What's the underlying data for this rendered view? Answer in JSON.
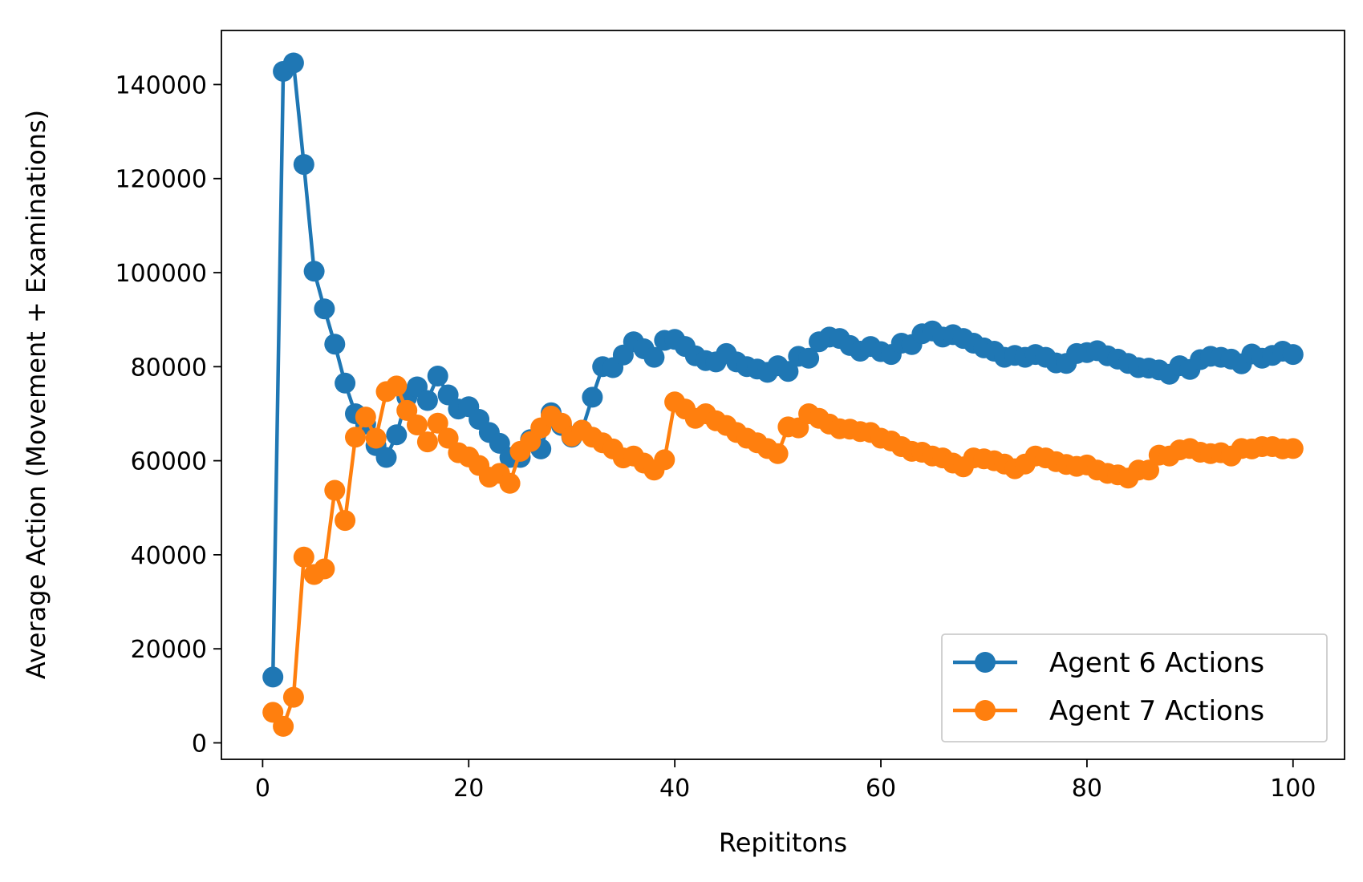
{
  "chart_data": {
    "type": "line",
    "title": "",
    "xlabel": "Repititons",
    "ylabel": "Average Action (Movement + Examinations)",
    "xlim": [
      -4,
      105
    ],
    "ylim": [
      -3500,
      151500
    ],
    "xticks": [
      0,
      20,
      40,
      60,
      80,
      100
    ],
    "yticks": [
      0,
      20000,
      40000,
      60000,
      80000,
      100000,
      120000,
      140000
    ],
    "grid": false,
    "legend_position": "lower-right",
    "x": [
      1,
      2,
      3,
      4,
      5,
      6,
      7,
      8,
      9,
      10,
      11,
      12,
      13,
      14,
      15,
      16,
      17,
      18,
      19,
      20,
      21,
      22,
      23,
      24,
      25,
      26,
      27,
      28,
      29,
      30,
      31,
      32,
      33,
      34,
      35,
      36,
      37,
      38,
      39,
      40,
      41,
      42,
      43,
      44,
      45,
      46,
      47,
      48,
      49,
      50,
      51,
      52,
      53,
      54,
      55,
      56,
      57,
      58,
      59,
      60,
      61,
      62,
      63,
      64,
      65,
      66,
      67,
      68,
      69,
      70,
      71,
      72,
      73,
      74,
      75,
      76,
      77,
      78,
      79,
      80,
      81,
      82,
      83,
      84,
      85,
      86,
      87,
      88,
      89,
      90,
      91,
      92,
      93,
      94,
      95,
      96,
      97,
      98,
      99,
      100
    ],
    "series": [
      {
        "name": "Agent 6 Actions",
        "color": "#1f77b4",
        "values": [
          14000,
          142800,
          144600,
          123000,
          100300,
          92300,
          84800,
          76500,
          70000,
          67800,
          63200,
          60700,
          65500,
          73500,
          75700,
          72800,
          78000,
          74000,
          71000,
          71500,
          68800,
          66000,
          63700,
          60700,
          60700,
          64500,
          62500,
          70200,
          67500,
          65000,
          66500,
          73500,
          80000,
          79800,
          82500,
          85300,
          83800,
          82000,
          85600,
          85800,
          84300,
          82300,
          81300,
          81000,
          82800,
          81000,
          80000,
          79500,
          78800,
          80200,
          79000,
          82200,
          81800,
          85300,
          86300,
          86000,
          84500,
          83300,
          84300,
          83200,
          82600,
          85000,
          84700,
          87000,
          87600,
          86300,
          86800,
          86000,
          85000,
          84000,
          83300,
          82000,
          82400,
          82000,
          82600,
          82000,
          80800,
          80700,
          82800,
          83000,
          83400,
          82300,
          81600,
          80700,
          79800,
          79700,
          79300,
          78400,
          80200,
          79400,
          81500,
          82200,
          82000,
          81600,
          80600,
          82700,
          81800,
          82400,
          83300,
          82600
        ]
      },
      {
        "name": "Agent 7 Actions",
        "color": "#ff7f0e",
        "values": [
          6500,
          3500,
          9700,
          39500,
          35800,
          37000,
          53700,
          47300,
          65000,
          69300,
          64800,
          74700,
          75900,
          70700,
          67600,
          64000,
          68000,
          64800,
          61700,
          60800,
          59000,
          56500,
          57300,
          55200,
          62000,
          64100,
          67000,
          69500,
          68000,
          65200,
          66500,
          65000,
          63800,
          62500,
          60600,
          61000,
          59500,
          58000,
          60200,
          72500,
          71000,
          69000,
          70000,
          68500,
          67500,
          66000,
          64800,
          63800,
          62600,
          61500,
          67200,
          67000,
          70000,
          69000,
          67800,
          66800,
          66700,
          66200,
          66000,
          64800,
          64200,
          63000,
          62000,
          61800,
          61000,
          60600,
          59500,
          58700,
          60600,
          60400,
          60000,
          59300,
          58300,
          59300,
          61000,
          60600,
          59800,
          59200,
          58800,
          59100,
          58000,
          57300,
          57000,
          56300,
          58000,
          58000,
          61200,
          61000,
          62300,
          62600,
          61800,
          61500,
          61700,
          61000,
          62600,
          62500,
          63000,
          63000,
          62500,
          62600
        ]
      }
    ]
  }
}
